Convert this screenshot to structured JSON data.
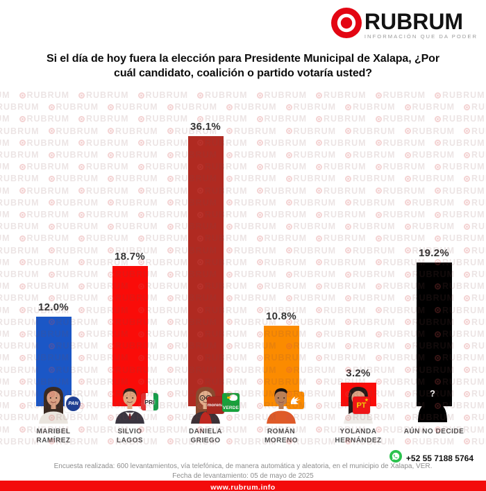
{
  "header": {
    "brand": "RUBRUM",
    "tagline": "INFORMACIÓN QUE DA PODER"
  },
  "title": {
    "line1": "Si el día de hoy fuera la elección para Presidente Municipal de Xalapa, ¿Por",
    "line2": "cuál candidato, coalición o partido votaría usted?"
  },
  "watermark": {
    "text": "RUBRUM"
  },
  "chart_data": {
    "type": "bar",
    "title": "Si el día de hoy fuera la elección para Presidente Municipal de Xalapa, ¿Por cuál candidato, coalición o partido votaría usted?",
    "categories": [
      "MARIBEL RAMÍREZ",
      "SILVIO LAGOS",
      "DANIELA GRIEGO",
      "ROMÁN MORENO",
      "YOLANDA HERNÁNDEZ",
      "AÚN NO DECIDE"
    ],
    "values": [
      12.0,
      18.7,
      36.1,
      10.8,
      3.2,
      19.2
    ],
    "value_labels": [
      "12.0%",
      "18.7%",
      "36.1%",
      "10.8%",
      "3.2%",
      "19.2%"
    ],
    "bar_colors": [
      "#1b57c6",
      "#fa0c09",
      "#b02a21",
      "#fb8b00",
      "#fa0c09",
      "#000000"
    ],
    "parties_per_bar": [
      [
        "PAN"
      ],
      [
        "PRI"
      ],
      [
        "morena",
        "VERDE"
      ],
      [
        "MC"
      ],
      [
        "PT"
      ],
      []
    ],
    "xlabel": "",
    "ylabel": "",
    "ylim": [
      0,
      40
    ],
    "grid": false,
    "legend": false
  },
  "candidates": [
    {
      "name_line1": "MARIBEL",
      "name_line2": "RAMÍREZ",
      "value_label": "12.0%",
      "pct": 12.0,
      "bar_color": "#1b57c6",
      "parties": [
        {
          "code": "pan",
          "label": "PAN"
        }
      ],
      "avatar": {
        "type": "woman",
        "hair": "#3a2a22",
        "skin": "#d9a184",
        "shirt": "#eae5de"
      }
    },
    {
      "name_line1": "SILVIO",
      "name_line2": "LAGOS",
      "value_label": "18.7%",
      "pct": 18.7,
      "bar_color": "#fa0c09",
      "parties": [
        {
          "code": "pri",
          "label": "PRI"
        }
      ],
      "avatar": {
        "type": "man",
        "hair": "#2c2218",
        "skin": "#e0a87f",
        "shirt": "#3a3540",
        "suit": true
      }
    },
    {
      "name_line1": "DANIELA",
      "name_line2": "GRIEGO",
      "value_label": "36.1%",
      "pct": 36.1,
      "bar_color": "#b02a21",
      "parties": [
        {
          "code": "morena",
          "label": "morena"
        },
        {
          "code": "verde",
          "label": "VERDE"
        }
      ],
      "avatar": {
        "type": "woman",
        "hair": "#8a4a2e",
        "skin": "#e3b08d",
        "shirt": "#3c3136",
        "inner": "#c1271f",
        "glasses": true
      }
    },
    {
      "name_line1": "ROMÁN",
      "name_line2": "MORENO",
      "value_label": "10.8%",
      "pct": 10.8,
      "bar_color": "#fb8b00",
      "parties": [
        {
          "code": "mc",
          "label": "MC"
        }
      ],
      "avatar": {
        "type": "man",
        "hair": "#151010",
        "skin": "#b97f56",
        "shirt": "#df5a28"
      }
    },
    {
      "name_line1": "YOLANDA",
      "name_line2": "HERNÁNDEZ",
      "value_label": "3.2%",
      "pct": 3.2,
      "bar_color": "#fa0c09",
      "parties": [
        {
          "code": "pt",
          "label": "PT"
        }
      ],
      "avatar": {
        "type": "woman",
        "hair": "#241b18",
        "skin": "#dfa586",
        "shirt": "#eeebe7"
      }
    },
    {
      "name_line1": "AÚN NO DECIDE",
      "name_line2": "",
      "value_label": "19.2%",
      "pct": 19.2,
      "bar_color": "#000000",
      "parties": [],
      "avatar": {
        "type": "unknown",
        "mark": "?"
      }
    }
  ],
  "contact": {
    "phone": "+52 55 7188 5764",
    "icon": "whatsapp-icon"
  },
  "footer": {
    "line1": "Encuesta realizada: 600 levantamientos, vía telefónica, de manera automática y aleatoria, en el municipio de Xalapa, VER.",
    "line2": "Fecha de levantamiento: 05 de mayo de 2025",
    "website": "www.rubrum.info"
  }
}
